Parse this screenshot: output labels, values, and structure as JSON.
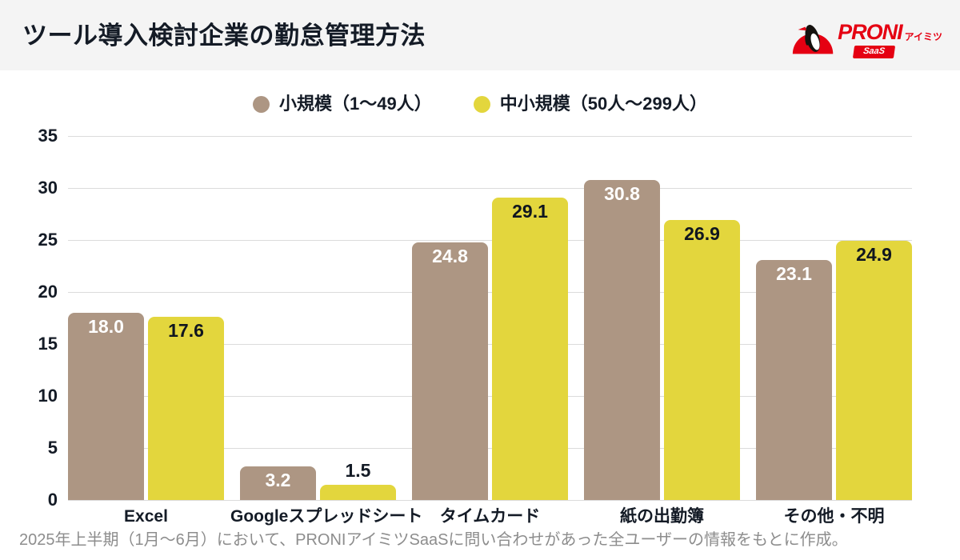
{
  "header": {
    "title": "ツール導入検討企業の勤怠管理方法",
    "logo": {
      "brand": "PRONI",
      "brand_sub": "アイミツ",
      "badge": "SaaS",
      "brand_color": "#e50012"
    }
  },
  "chart_data": {
    "type": "bar",
    "title": "ツール導入検討企業の勤怠管理方法",
    "categories": [
      "Excel",
      "Googleスプレッドシート",
      "タイムカード",
      "紙の出勤簿",
      "その他・不明"
    ],
    "series": [
      {
        "name": "小規模（1〜49人）",
        "color": "#ad9683",
        "value_label_color": "#ffffff",
        "values": [
          18.0,
          3.2,
          24.8,
          30.8,
          23.1
        ]
      },
      {
        "name": "中小規模（50人〜299人）",
        "color": "#e3d63d",
        "value_label_color": "#10161f",
        "values": [
          17.6,
          1.5,
          29.1,
          26.9,
          24.9
        ]
      }
    ],
    "xlabel": "",
    "ylabel": "",
    "ylim": [
      0,
      35
    ],
    "ytick_step": 5,
    "yticks": [
      0,
      5,
      10,
      15,
      20,
      25,
      30,
      35
    ],
    "grid": true,
    "legend_position": "top-center",
    "value_label_decimals": 1
  },
  "footer": {
    "note": "2025年上半期（1月〜6月）において、PRONIアイミツSaaSに問い合わせがあった全ユーザーの情報をもとに作成。"
  },
  "colors": {
    "header_bg": "#f4f4f4",
    "text_dark": "#141b26",
    "grid_line": "#dcdcdc",
    "footer_text": "#8d8d8d",
    "brand_red": "#e50012"
  }
}
